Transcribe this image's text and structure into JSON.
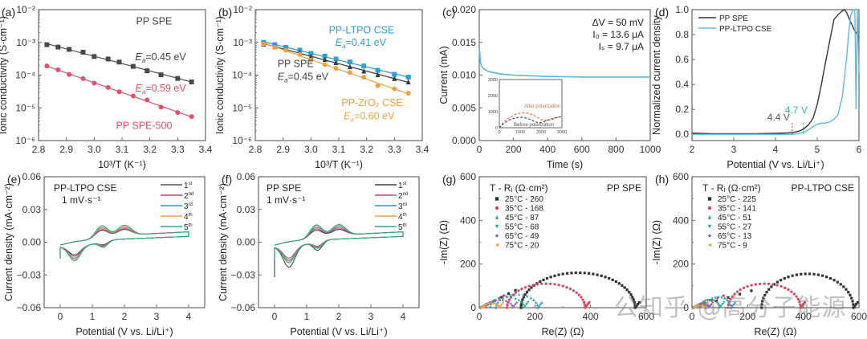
{
  "watermark": "公知乎 @高分子能源",
  "chart_data": [
    {
      "id": "a",
      "type": "scatter",
      "panel_label": "(a)",
      "title": "",
      "xlabel": "10³/T (K⁻¹)",
      "ylabel": "Ionic conductivity (S·cm⁻¹)",
      "xlim": [
        2.8,
        3.4
      ],
      "ylim_log10": [
        -6,
        -2
      ],
      "yscale": "log",
      "xticks": [
        2.8,
        2.9,
        3.0,
        3.1,
        3.2,
        3.3,
        3.4
      ],
      "xtick_labels": [
        "2.8",
        "2.9",
        "3.0",
        "3.1",
        "3.2",
        "3.3",
        "3.4"
      ],
      "yticks_log10": [
        -6,
        -5,
        -4,
        -3,
        -2
      ],
      "ytick_labels": [
        "10⁻⁶",
        "10⁻⁵",
        "10⁻⁴",
        "10⁻³",
        "10⁻²"
      ],
      "annotations": [
        {
          "text": "PP SPE",
          "x": 3.28,
          "ylog": -2.45,
          "color": "#444444",
          "anchor": "end"
        },
        {
          "text": "Ea=0.45 eV",
          "x": 3.33,
          "ylog": -3.55,
          "color": "#444444",
          "anchor": "end"
        },
        {
          "text": "Ea=0.59 eV",
          "x": 3.33,
          "ylog": -4.5,
          "color": "#e0526a",
          "anchor": "end"
        },
        {
          "text": "PP SPE-500",
          "x": 3.28,
          "ylog": -5.65,
          "color": "#e0526a",
          "anchor": "end"
        }
      ],
      "series": [
        {
          "name": "PP SPE",
          "marker": "square",
          "color": "#4a4a4a",
          "x": [
            2.83,
            2.87,
            2.91,
            2.96,
            3.0,
            3.05,
            3.09,
            3.14,
            3.19,
            3.24,
            3.3,
            3.35
          ],
          "y": [
            0.00085,
            0.00072,
            0.00061,
            0.0005,
            0.00037,
            0.00031,
            0.00025,
            0.000185,
            0.000135,
            0.000102,
            7.9e-05,
            6.2e-05
          ]
        },
        {
          "name": "PP SPE-500",
          "marker": "circle",
          "color": "#e0526a",
          "x": [
            2.83,
            2.87,
            2.91,
            2.96,
            3.0,
            3.05,
            3.09,
            3.14,
            3.19,
            3.24,
            3.3,
            3.35
          ],
          "y": [
            0.00019,
            0.000145,
            0.000105,
            7.8e-05,
            5.7e-05,
            4.2e-05,
            3.1e-05,
            2.3e-05,
            1.75e-05,
            1.05e-05,
            7.2e-06,
            5.4e-06
          ]
        }
      ]
    },
    {
      "id": "b",
      "type": "scatter",
      "panel_label": "(b)",
      "xlabel": "10³/T (K⁻¹)",
      "ylabel": "Ionic conductivity (S·cm⁻¹)",
      "xlim": [
        2.8,
        3.4
      ],
      "ylim_log10": [
        -6,
        -2
      ],
      "yscale": "log",
      "xticks": [
        2.8,
        2.9,
        3.0,
        3.1,
        3.2,
        3.3,
        3.4
      ],
      "xtick_labels": [
        "2.8",
        "2.9",
        "3.0",
        "3.1",
        "3.2",
        "3.3",
        "3.4"
      ],
      "yticks_log10": [
        -6,
        -5,
        -4,
        -3,
        -2
      ],
      "ytick_labels": [
        "10⁻⁶",
        "10⁻⁵",
        "10⁻⁴",
        "10⁻³",
        "10⁻²"
      ],
      "annotations": [
        {
          "text": "PP-LTPO CSE",
          "x": 3.3,
          "ylog": -2.72,
          "color": "#2b9fd6",
          "anchor": "end"
        },
        {
          "text": "Ea=0.41 eV",
          "x": 3.27,
          "ylog": -3.1,
          "color": "#2b9fd6",
          "anchor": "end"
        },
        {
          "text": "PP SPE",
          "x": 2.88,
          "ylog": -3.75,
          "color": "#444444",
          "anchor": "start"
        },
        {
          "text": "Ea=0.45 eV",
          "x": 2.88,
          "ylog": -4.15,
          "color": "#444444",
          "anchor": "start"
        },
        {
          "text": "PP-ZrO₂ CSE",
          "x": 3.33,
          "ylog": -4.95,
          "color": "#f0a040",
          "anchor": "end"
        },
        {
          "text": "Ea=0.60 eV",
          "x": 3.3,
          "ylog": -5.35,
          "color": "#f0a040",
          "anchor": "end"
        }
      ],
      "series": [
        {
          "name": "PP-LTPO CSE",
          "marker": "square",
          "color": "#2b9fd6",
          "x": [
            2.83,
            2.87,
            2.91,
            2.96,
            3.0,
            3.05,
            3.09,
            3.14,
            3.19,
            3.24,
            3.3,
            3.35
          ],
          "y": [
            0.001,
            0.00085,
            0.0007,
            0.00058,
            0.00046,
            0.00038,
            0.00031,
            0.00025,
            0.00019,
            0.00014,
            0.000105,
            8.7e-05
          ]
        },
        {
          "name": "PP SPE",
          "marker": "triangle",
          "color": "#3a3a3a",
          "x": [
            2.83,
            2.87,
            2.91,
            2.96,
            3.0,
            3.05,
            3.09,
            3.14,
            3.19,
            3.24,
            3.3,
            3.35
          ],
          "y": [
            0.00088,
            0.00073,
            0.00061,
            0.00049,
            0.00037,
            0.0003,
            0.00024,
            0.00018,
            0.000133,
            0.000102,
            7.8e-05,
            6.2e-05
          ]
        },
        {
          "name": "PP-ZrO2 CSE",
          "marker": "circle",
          "color": "#f0a040",
          "x": [
            2.83,
            2.87,
            2.91,
            2.96,
            3.0,
            3.05,
            3.09,
            3.14,
            3.19,
            3.24,
            3.3,
            3.35
          ],
          "y": [
            0.0009,
            0.0007,
            0.00058,
            0.00043,
            0.00029,
            0.00021,
            0.00016,
            0.00012,
            8.6e-05,
            4.8e-05,
            3.8e-05,
            2.8e-05
          ]
        }
      ]
    },
    {
      "id": "c",
      "type": "line",
      "panel_label": "(c)",
      "xlabel": "Time (s)",
      "ylabel": "Current (mA)",
      "xlim": [
        0,
        1000
      ],
      "ylim": [
        0,
        0.02
      ],
      "xticks": [
        0,
        200,
        400,
        600,
        800,
        1000
      ],
      "xtick_labels": [
        "0",
        "200",
        "400",
        "600",
        "800",
        "1000"
      ],
      "yticks": [
        0,
        0.005,
        0.01,
        0.015,
        0.02
      ],
      "ytick_labels": [
        "0.000",
        "0.005",
        "0.010",
        "0.015",
        "0.020"
      ],
      "annotations": [
        {
          "text": "ΔV = 50 mV"
        },
        {
          "text": "I₀ = 13.6 μA"
        },
        {
          "text": "Iₛ = 9.7 μA"
        }
      ],
      "series": [
        {
          "name": "current",
          "color": "#5bb8d8",
          "x": [
            0,
            2,
            4,
            6,
            8,
            10,
            15,
            20,
            30,
            50,
            80,
            120,
            200,
            300,
            400,
            500,
            600,
            700,
            800,
            900,
            1000
          ],
          "y": [
            0.0125,
            0.0138,
            0.0132,
            0.0124,
            0.0119,
            0.0116,
            0.0113,
            0.0111,
            0.0109,
            0.0106,
            0.0104,
            0.0102,
            0.01,
            0.0099,
            0.0098,
            0.00975,
            0.0097,
            0.0097,
            0.0097,
            0.0097,
            0.0097
          ]
        }
      ],
      "inset": {
        "xlim": [
          0,
          3000
        ],
        "ylim": [
          0,
          3000
        ],
        "xticks": [
          0,
          1000,
          2000,
          3000
        ],
        "xtick_labels": [
          "0",
          "1000",
          "2000",
          "3000"
        ],
        "yticks": [
          0,
          1000,
          2000,
          3000
        ],
        "ytick_labels": [
          "0",
          "1000",
          "2000",
          "3000"
        ],
        "labels": [
          {
            "text": "After polarization",
            "color": "#e06a3a"
          },
          {
            "text": "Before polarization",
            "color": "#555555"
          }
        ],
        "series": [
          {
            "name": "After polarization",
            "color": "#e07a4a",
            "x": [
              0,
              200,
              500,
              800,
              1100,
              1400,
              1700,
              2000,
              2300,
              2600,
              2900
            ],
            "y": [
              0,
              350,
              650,
              850,
              930,
              900,
              750,
              500,
              450,
              550,
              700
            ]
          },
          {
            "name": "Before polarization",
            "color": "#555555",
            "x": [
              0,
              200,
              500,
              800,
              1100,
              1400,
              1700,
              1900,
              2100,
              2400,
              2700,
              2950
            ],
            "y": [
              0,
              250,
              500,
              620,
              650,
              560,
              380,
              300,
              360,
              520,
              620,
              680
            ]
          }
        ]
      }
    },
    {
      "id": "d",
      "type": "line",
      "panel_label": "(d)",
      "xlabel": "Potential (V vs. Li/Li⁺)",
      "ylabel": "Normalized current density",
      "xlim": [
        2,
        6
      ],
      "ylim": [
        -0.05,
        1.0
      ],
      "xticks": [
        2,
        3,
        4,
        5,
        6
      ],
      "xtick_labels": [
        "2",
        "3",
        "4",
        "5",
        "6"
      ],
      "yticks": [
        0,
        0.2,
        0.4,
        0.6,
        0.8,
        1.0
      ],
      "ytick_labels": [
        "0.0",
        "0.2",
        "0.4",
        "0.6",
        "0.8",
        "1.0"
      ],
      "legend": "top-left",
      "annotations": [
        {
          "text": "4.4 V",
          "x": 4.4,
          "color": "#555555"
        },
        {
          "text": "4.7 V",
          "x": 4.67,
          "color": "#3aa8d0"
        }
      ],
      "series": [
        {
          "name": "PP SPE",
          "color": "#333333",
          "x": [
            2,
            2.5,
            3,
            3.5,
            4,
            4.3,
            4.4,
            4.5,
            4.6,
            4.7,
            4.8,
            4.9,
            5.0,
            5.1,
            5.2,
            5.3,
            5.4,
            5.5,
            5.6,
            5.65,
            5.7,
            5.8,
            5.9,
            6.0
          ],
          "y": [
            0.01,
            0.005,
            0.005,
            0.005,
            0.008,
            0.012,
            0.015,
            0.02,
            0.03,
            0.05,
            0.08,
            0.13,
            0.24,
            0.4,
            0.58,
            0.75,
            0.92,
            0.96,
            0.99,
            1.0,
            0.98,
            0.9,
            0.83,
            0.78
          ]
        },
        {
          "name": "PP-LTPO CSE",
          "color": "#5bbbe0",
          "x": [
            2,
            2.5,
            3,
            3.5,
            4,
            4.4,
            4.6,
            4.7,
            4.8,
            4.9,
            5.0,
            5.1,
            5.2,
            5.3,
            5.4,
            5.5,
            5.6,
            5.7,
            5.75,
            5.8,
            5.85,
            5.9,
            5.93,
            5.96,
            6.0
          ],
          "y": [
            0.0,
            0.0,
            0.0,
            0.0,
            0.0,
            0.0,
            0.01,
            0.02,
            0.04,
            0.06,
            0.08,
            0.09,
            0.09,
            0.1,
            0.12,
            0.16,
            0.3,
            0.6,
            0.8,
            0.95,
            1.0,
            1.0,
            0.2,
            1.0,
            0.5
          ]
        }
      ]
    },
    {
      "id": "e",
      "type": "line",
      "panel_label": "(e)",
      "xlabel": "Potential (V vs. Li/Li⁺)",
      "ylabel": "Current density (mA·cm⁻²)",
      "xlim": [
        -0.5,
        4.5
      ],
      "ylim": [
        -0.06,
        0.06
      ],
      "xticks": [
        0,
        1,
        2,
        3,
        4
      ],
      "xtick_labels": [
        "0",
        "1",
        "2",
        "3",
        "4"
      ],
      "yticks": [
        -0.06,
        -0.03,
        0,
        0.03,
        0.06
      ],
      "ytick_labels": [
        "−0.06",
        "−0.03",
        "0.00",
        "0.03",
        "0.06"
      ],
      "annotations": [
        {
          "text": "PP-LTPO CSE"
        },
        {
          "text": "1 mV·s⁻¹"
        }
      ],
      "legend": "top-right",
      "series": [
        {
          "name": "1st",
          "color": "#555555",
          "peak_ox": 0.008,
          "peak_red": -0.013
        },
        {
          "name": "2nd",
          "color": "#d04060",
          "peak_ox": 0.009,
          "peak_red": -0.015
        },
        {
          "name": "3rd",
          "color": "#3a90c8",
          "peak_ox": 0.011,
          "peak_red": -0.018
        },
        {
          "name": "4th",
          "color": "#f0a040",
          "peak_ox": 0.012,
          "peak_red": -0.02
        },
        {
          "name": "5th",
          "color": "#2aa890",
          "peak_ox": 0.014,
          "peak_red": -0.022
        }
      ]
    },
    {
      "id": "f",
      "type": "line",
      "panel_label": "(f)",
      "xlabel": "Potential (V vs. Li/Li⁺)",
      "ylabel": "Current density (mA·cm⁻²)",
      "xlim": [
        -0.5,
        4.5
      ],
      "ylim": [
        -0.06,
        0.06
      ],
      "xticks": [
        0,
        1,
        2,
        3,
        4
      ],
      "xtick_labels": [
        "0",
        "1",
        "2",
        "3",
        "4"
      ],
      "yticks": [
        -0.06,
        -0.03,
        0,
        0.03,
        0.06
      ],
      "ytick_labels": [
        "−0.06",
        "−0.03",
        "0.00",
        "0.03",
        "0.06"
      ],
      "annotations": [
        {
          "text": "PP SPE"
        },
        {
          "text": "1 mV·s⁻¹"
        }
      ],
      "legend": "top-right",
      "series": [
        {
          "name": "1st",
          "color": "#444444",
          "peak_ox": 0.008,
          "peak_red": -0.032
        },
        {
          "name": "2nd",
          "color": "#d04060",
          "peak_ox": 0.01,
          "peak_red": -0.018
        },
        {
          "name": "3rd",
          "color": "#3a90c8",
          "peak_ox": 0.012,
          "peak_red": -0.021
        },
        {
          "name": "4th",
          "color": "#f0a040",
          "peak_ox": 0.014,
          "peak_red": -0.023
        },
        {
          "name": "5th",
          "color": "#2aa890",
          "peak_ox": 0.015,
          "peak_red": -0.025
        }
      ]
    },
    {
      "id": "g",
      "type": "scatter",
      "panel_label": "(g)",
      "xlabel": "Re(Z) (Ω)",
      "ylabel": "-Im(Z) (Ω)",
      "xlim": [
        0,
        600
      ],
      "ylim": [
        0,
        600
      ],
      "xticks": [
        0,
        200,
        400,
        600
      ],
      "xtick_labels": [
        "0",
        "200",
        "400",
        "600"
      ],
      "yticks": [
        0,
        200,
        400,
        600
      ],
      "ytick_labels": [
        "0",
        "200",
        "400",
        "600"
      ],
      "sample_label": "PP SPE",
      "legend_title": "T - Rᵢ (Ω·cm²)",
      "legend": "top-left",
      "series": [
        {
          "name": "25°C - 260",
          "color": "#333333",
          "marker": "square",
          "start": 150,
          "end": 560,
          "height": 160
        },
        {
          "name": "35°C - 168",
          "color": "#e0405a",
          "marker": "circle",
          "start": 100,
          "end": 380,
          "height": 110
        },
        {
          "name": "45°C - 87",
          "color": "#2b9fd6",
          "marker": "triangle",
          "start": 60,
          "end": 210,
          "height": 60
        },
        {
          "name": "55°C - 68",
          "color": "#20a890",
          "marker": "triangle-down",
          "start": 40,
          "end": 160,
          "height": 45
        },
        {
          "name": "65°C - 49",
          "color": "#9060c0",
          "marker": "diamond",
          "start": 25,
          "end": 120,
          "height": 35
        },
        {
          "name": "75°C - 20",
          "color": "#f0a040",
          "marker": "triangle-left",
          "start": 15,
          "end": 70,
          "height": 20
        }
      ]
    },
    {
      "id": "h",
      "type": "scatter",
      "panel_label": "(h)",
      "xlabel": "Re(Z) (Ω)",
      "ylabel": "-Im(Z) (Ω)",
      "xlim": [
        0,
        600
      ],
      "ylim": [
        0,
        600
      ],
      "xticks": [
        0,
        200,
        400,
        600
      ],
      "xtick_labels": [
        "0",
        "200",
        "400",
        "600"
      ],
      "yticks": [
        0,
        200,
        400,
        600
      ],
      "ytick_labels": [
        "0",
        "200",
        "400",
        "600"
      ],
      "sample_label": "PP-LTPO CSE",
      "legend_title": "T - Rᵢ (Ω·cm²)",
      "legend": "top-left",
      "series": [
        {
          "name": "25°C - 225",
          "color": "#333333",
          "marker": "square",
          "start": 250,
          "end": 580,
          "height": 155
        },
        {
          "name": "35°C - 141",
          "color": "#e0405a",
          "marker": "circle",
          "start": 130,
          "end": 390,
          "height": 110
        },
        {
          "name": "45°C - 51",
          "color": "#2b9fd6",
          "marker": "triangle",
          "start": 50,
          "end": 140,
          "height": 50
        },
        {
          "name": "55°C - 27",
          "color": "#20a890",
          "marker": "triangle-down",
          "start": 30,
          "end": 100,
          "height": 35
        },
        {
          "name": "65°C - 13",
          "color": "#9060c0",
          "marker": "diamond",
          "start": 20,
          "end": 60,
          "height": 20
        },
        {
          "name": "75°C - 9",
          "color": "#f0a040",
          "marker": "triangle-left",
          "start": 10,
          "end": 40,
          "height": 10
        }
      ]
    }
  ]
}
